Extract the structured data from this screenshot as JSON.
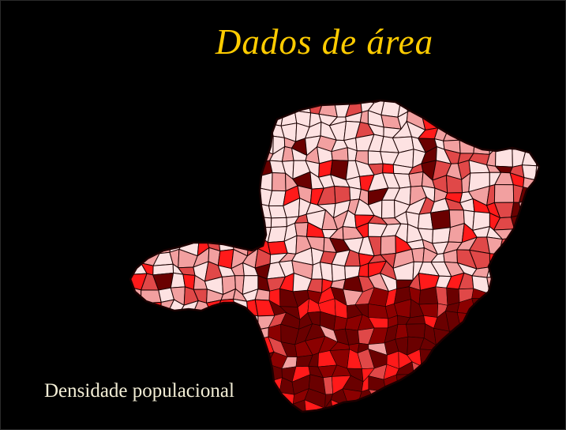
{
  "slide": {
    "title": "Dados de área",
    "caption": "Densidade populacional"
  },
  "map": {
    "classes": [
      "very-low",
      "low",
      "medium",
      "high",
      "very-high"
    ],
    "colors": {
      "background": "#000000",
      "title": "#ffcc00",
      "caption": "#f3eed6",
      "border": "#1a0000",
      "very-low": "#fde2e2",
      "low": "#f2a0a0",
      "medium": "#e04848",
      "high": "#ff1a1a",
      "very-high": "#6a0000",
      "dense-core": "#8b0000"
    }
  }
}
